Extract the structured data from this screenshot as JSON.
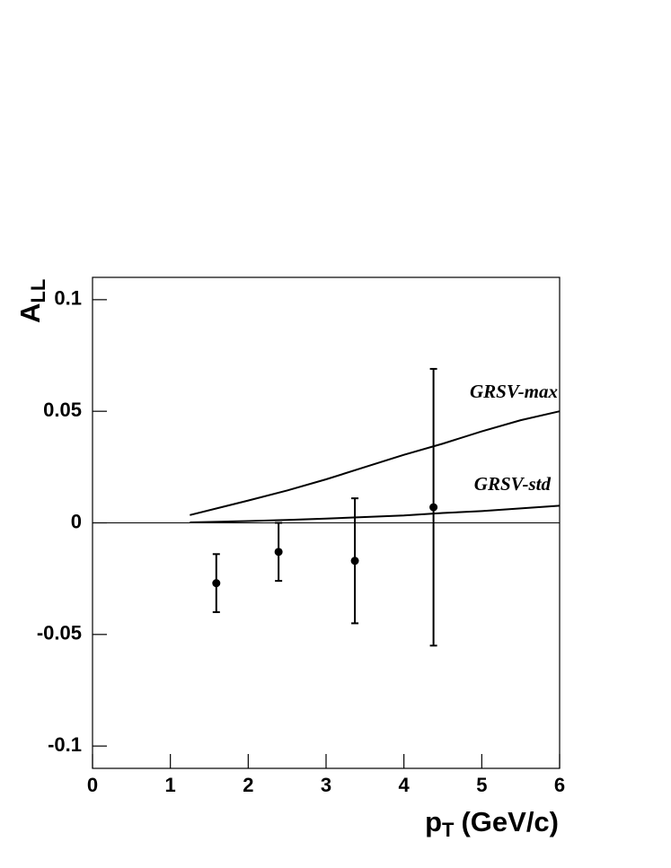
{
  "chart_data": {
    "type": "scatter",
    "x_label": {
      "main": "p",
      "sub": "T",
      "rest": "(GeV/c)"
    },
    "y_label": {
      "main": "A",
      "sub": "LL"
    },
    "xlim": [
      0,
      6
    ],
    "xticks": [
      0,
      1,
      2,
      3,
      4,
      5,
      6
    ],
    "ylim": [
      -0.11,
      0.11
    ],
    "yticks": [
      0.1,
      0.05,
      0,
      -0.05,
      -0.1
    ],
    "points": {
      "x": [
        1.59,
        2.39,
        3.37,
        4.38
      ],
      "values": [
        -0.027,
        -0.013,
        -0.017,
        0.007
      ],
      "errors": [
        0.013,
        0.013,
        0.028,
        0.062
      ],
      "color": "#000000"
    },
    "curves": [
      {
        "name": "GRSV-max",
        "color": "#000000",
        "x": [
          1.25,
          2,
          2.5,
          3,
          3.5,
          4,
          4.5,
          5,
          5.5,
          6
        ],
        "values": [
          0.0035,
          0.01,
          0.0145,
          0.0195,
          0.025,
          0.0305,
          0.0355,
          0.041,
          0.046,
          0.05
        ]
      },
      {
        "name": "GRSV-std",
        "color": "#000000",
        "x": [
          1.25,
          2,
          2.5,
          3,
          3.5,
          4,
          4.5,
          5,
          5.5,
          6
        ],
        "values": [
          0.0002,
          0.0008,
          0.0013,
          0.0019,
          0.0026,
          0.0033,
          0.0044,
          0.0053,
          0.0065,
          0.0077
        ]
      }
    ]
  }
}
